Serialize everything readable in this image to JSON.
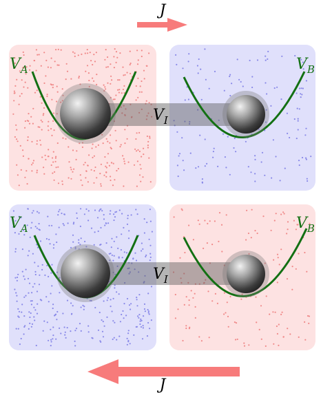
{
  "labels": {
    "current": "J",
    "potential_a": "V",
    "potential_a_sub": "A",
    "potential_b": "V",
    "potential_b_sub": "B",
    "interaction": "V",
    "interaction_sub": "I"
  },
  "colors": {
    "hot_fill": "#fde2e2",
    "hot_dot": "#f08a8a",
    "cold_fill": "#e0e0fb",
    "cold_dot": "#8a8ae8",
    "potential": "#137013",
    "arrow": "#f77b7b",
    "coupling": "#6d6d6d"
  },
  "panels": [
    {
      "reservoir_a": "hot",
      "reservoir_b": "cold",
      "current_direction": "right",
      "dot_count_a": 420,
      "dot_count_b": 150
    },
    {
      "reservoir_a": "cold",
      "reservoir_b": "hot",
      "current_direction": "left",
      "dot_count_a": 420,
      "dot_count_b": 150
    }
  ]
}
